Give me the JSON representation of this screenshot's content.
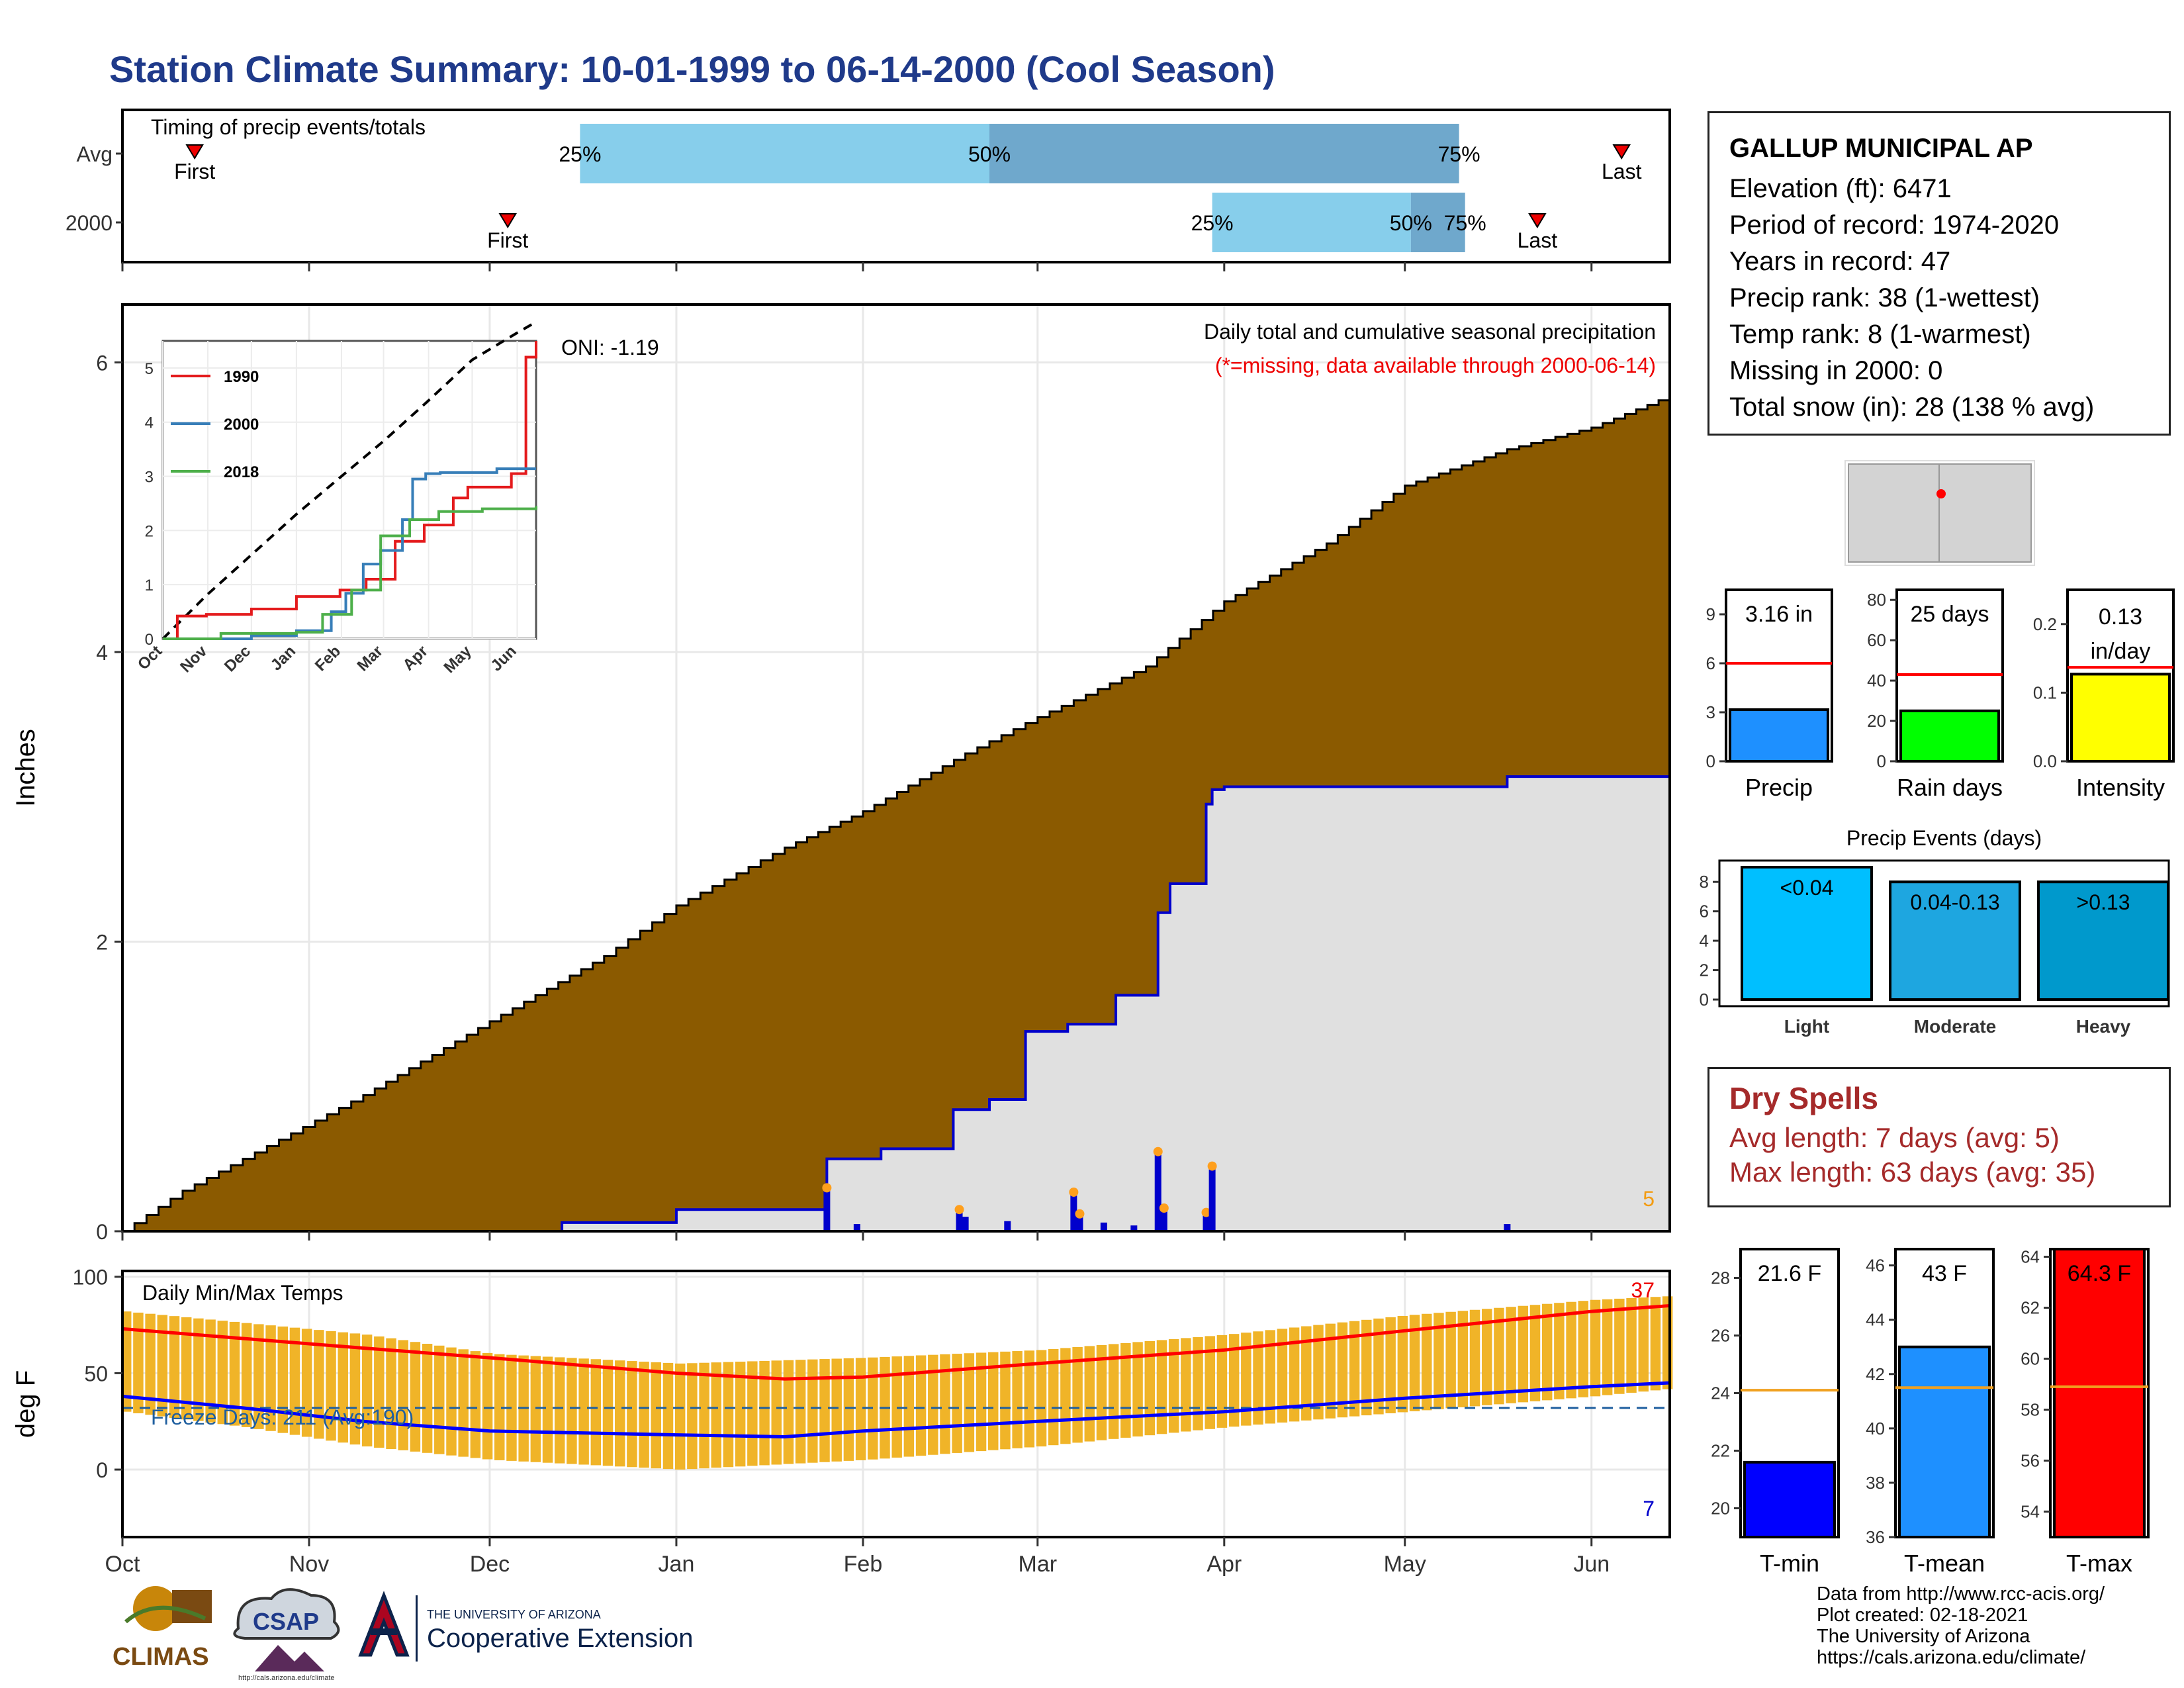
{
  "title": "Station Climate Summary: 10-01-1999 to 06-14-2000 (Cool Season)",
  "station": {
    "name": "GALLUP MUNICIPAL AP",
    "lines": [
      "Elevation (ft): 6471",
      "Period of record: 1974-2020",
      "Years in record: 47",
      "Precip rank: 38 (1-wettest)",
      "Temp rank: 8 (1-warmest)",
      "Missing in 2000: 0",
      "Total snow (in): 28 (138 % avg)"
    ]
  },
  "dry_spells": {
    "heading": "Dry Spells",
    "avg_line": "Avg length: 7 days (avg: 5)",
    "max_line": "Max length: 63 days (avg: 35)"
  },
  "footer": {
    "lines": [
      "Data from http://www.rcc-acis.org/",
      "Plot created: 02-18-2021",
      "The University of Arizona",
      "https://cals.arizona.edu/climate/"
    ]
  },
  "logos": {
    "climas": "CLIMAS",
    "csap": "CSAP",
    "ua_small": "THE UNIVERSITY OF ARIZONA",
    "ua_big": "Cooperative Extension",
    "csap_url": "http://cals.arizona.edu/climate"
  },
  "colors": {
    "title": "#1f3a8a",
    "cumulative_avg": "#8b5a00",
    "cumulative_2000": "#e0e0e0",
    "daily_bar": "#0000cc",
    "temp_bar": "#f0b428",
    "tmax_line": "#ff0000",
    "tmin_line": "#0000ff",
    "light_bar": "#00bfff",
    "moderate_bar": "#1ea6e0",
    "heavy_bar": "#0099cc"
  },
  "chart_data": [
    {
      "id": "timing",
      "type": "bar",
      "title": "Timing of precip events/totals",
      "month_axis": [
        "Oct",
        "Nov",
        "Dec",
        "Jan",
        "Feb",
        "Mar",
        "Apr",
        "May",
        "Jun"
      ],
      "categories": [
        "Avg",
        "2000"
      ],
      "rows": [
        {
          "label": "Avg",
          "first_day": 12,
          "p25_day": 76,
          "p50_day": 144,
          "p75_day": 222,
          "last_day": 249
        },
        {
          "label": "2000",
          "first_day": 64,
          "p25_day": 181,
          "p50_day": 214,
          "p75_day": 223,
          "last_day": 235
        }
      ],
      "labels": {
        "first": "First",
        "last": "Last",
        "p25": "25%",
        "p50": "50%",
        "p75": "75%"
      }
    },
    {
      "id": "precip",
      "type": "area",
      "title": "Daily total and cumulative seasonal precipitation",
      "subtitle": "(*=missing, data available through 2000-06-14)",
      "oni": "ONI: -1.19",
      "ylabel": "Inches",
      "ylim": [
        0,
        6.4
      ],
      "yticks": [
        0,
        2,
        4,
        6
      ],
      "x_month_days": [
        0,
        31,
        61,
        92,
        123,
        152,
        183,
        213,
        244
      ],
      "x_total_days": 257,
      "corner_label": "5",
      "avg_cumulative": {
        "x": [
          0,
          10,
          20,
          40,
          61,
          80,
          92,
          110,
          123,
          140,
          152,
          170,
          183,
          200,
          213,
          230,
          244,
          257
        ],
        "y": [
          0,
          0.28,
          0.5,
          0.94,
          1.45,
          1.9,
          2.25,
          2.65,
          2.9,
          3.3,
          3.55,
          3.9,
          4.35,
          4.75,
          5.15,
          5.4,
          5.55,
          5.77
        ]
      },
      "cumulative_2000": {
        "x": [
          0,
          61,
          73,
          92,
          116,
          117,
          126,
          138,
          144,
          150,
          157,
          165,
          172,
          174,
          180,
          181,
          183,
          191,
          230,
          257
        ],
        "y": [
          0,
          0,
          0.06,
          0.15,
          0.15,
          0.5,
          0.57,
          0.84,
          0.91,
          1.38,
          1.43,
          1.63,
          2.2,
          2.4,
          2.95,
          3.05,
          3.07,
          3.07,
          3.14,
          3.14
        ]
      },
      "daily_2000": {
        "x": [
          117,
          122,
          139,
          140,
          147,
          158,
          159,
          163,
          168,
          172,
          173,
          180,
          181,
          230
        ],
        "y": [
          0.3,
          0.05,
          0.15,
          0.1,
          0.07,
          0.27,
          0.12,
          0.06,
          0.04,
          0.55,
          0.16,
          0.13,
          0.45,
          0.05
        ]
      },
      "inset": {
        "ylim": [
          0,
          5.5
        ],
        "yticks": [
          0,
          1,
          2,
          3,
          4,
          5
        ],
        "xticks": [
          "Oct",
          "Nov",
          "Dec",
          "Jan",
          "Feb",
          "Mar",
          "Apr",
          "May",
          "Jun"
        ],
        "series": [
          {
            "name": "1990",
            "color": "#e41a1c",
            "x": [
              0,
              10,
              30,
              61,
              92,
              122,
              140,
              160,
              180,
              200,
              210,
              240,
              250,
              257
            ],
            "y": [
              0,
              0.42,
              0.45,
              0.55,
              0.78,
              0.9,
              1.1,
              1.8,
              2.1,
              2.6,
              2.8,
              3.05,
              5.2,
              5.5
            ]
          },
          {
            "name": "2000",
            "color": "#377eb8",
            "x": [
              0,
              61,
              92,
              116,
              126,
              138,
              150,
              165,
              172,
              181,
              191,
              230,
              257
            ],
            "y": [
              0,
              0.06,
              0.15,
              0.5,
              0.84,
              1.38,
              1.63,
              2.2,
              2.95,
              3.05,
              3.07,
              3.14,
              3.14
            ]
          },
          {
            "name": "2018",
            "color": "#4daf4a",
            "x": [
              0,
              40,
              92,
              110,
              130,
              150,
              170,
              190,
              220,
              257
            ],
            "y": [
              0,
              0.1,
              0.12,
              0.45,
              0.9,
              1.9,
              2.2,
              2.35,
              2.4,
              2.45
            ]
          }
        ],
        "avg_x": [
          0,
          30,
          61,
          92,
          123,
          152,
          183,
          213,
          244,
          257
        ],
        "avg_y": [
          0,
          0.8,
          1.55,
          2.3,
          3.0,
          3.65,
          4.4,
          5.15,
          5.65,
          5.85
        ]
      }
    },
    {
      "id": "temps",
      "type": "bar",
      "title": "Daily Min/Max Temps",
      "ylabel": "deg F",
      "ylim": [
        -35,
        103
      ],
      "yticks": [
        0,
        50,
        100
      ],
      "xticks": [
        "Oct",
        "Nov",
        "Dec",
        "Jan",
        "Feb",
        "Mar",
        "Apr",
        "May",
        "Jun"
      ],
      "x_month_days": [
        0,
        31,
        61,
        92,
        123,
        152,
        183,
        213,
        244
      ],
      "freeze_line": 32,
      "freeze_label": "Freeze Days: 211 (Avg:190)",
      "record_high_count": "37",
      "record_low_count": "7",
      "avg_max": {
        "x": [
          0,
          20,
          40,
          61,
          92,
          110,
          123,
          152,
          183,
          213,
          244,
          257
        ],
        "y": [
          73,
          68,
          63,
          58,
          50,
          47,
          48,
          55,
          62,
          72,
          82,
          85
        ]
      },
      "avg_min": {
        "x": [
          0,
          20,
          40,
          61,
          92,
          110,
          123,
          152,
          183,
          213,
          244,
          257
        ],
        "y": [
          38,
          32,
          25,
          20,
          18,
          17,
          20,
          25,
          30,
          37,
          43,
          45
        ]
      },
      "max_daily": {
        "x": [
          0,
          20,
          40,
          61,
          92,
          123,
          152,
          183,
          213,
          244,
          257
        ],
        "y": [
          82,
          76,
          70,
          60,
          55,
          58,
          62,
          70,
          80,
          88,
          90
        ]
      },
      "min_daily": {
        "x": [
          0,
          20,
          40,
          61,
          92,
          123,
          152,
          183,
          213,
          244,
          257
        ],
        "y": [
          30,
          22,
          12,
          5,
          0,
          5,
          12,
          22,
          30,
          38,
          42
        ]
      }
    },
    {
      "id": "summary_bars",
      "type": "bar",
      "panels": [
        {
          "name": "Precip",
          "label": "3.16 in",
          "value": 3.16,
          "avg": 6.0,
          "ylim": [
            0,
            10.5
          ],
          "yticks": [
            0,
            3,
            6,
            9
          ],
          "color": "#1e90ff"
        },
        {
          "name": "Rain days",
          "label": "25 days",
          "value": 25,
          "avg": 43,
          "ylim": [
            0,
            85
          ],
          "yticks": [
            0,
            20,
            40,
            60,
            80
          ],
          "color": "#00ff00"
        },
        {
          "name": "Intensity",
          "label_lines": [
            "0.13",
            "in/day"
          ],
          "value": 0.127,
          "avg": 0.137,
          "ylim": [
            0,
            0.25
          ],
          "yticks": [
            0.0,
            0.1,
            0.2
          ],
          "ytick_labels": [
            "0.0",
            "0.1",
            "0.2"
          ],
          "color": "#ffff00"
        }
      ]
    },
    {
      "id": "events",
      "type": "bar",
      "title": "Precip Events (days)",
      "categories": [
        "Light",
        "Moderate",
        "Heavy"
      ],
      "bar_labels": [
        "<0.04",
        "0.04-0.13",
        ">0.13"
      ],
      "values": [
        9,
        8,
        8
      ],
      "ylim": [
        0,
        9
      ],
      "yticks": [
        0,
        2,
        4,
        6,
        8
      ]
    },
    {
      "id": "temp_bars",
      "type": "bar",
      "panels": [
        {
          "name": "T-min",
          "label": "21.6 F",
          "value": 21.6,
          "avg": 24.1,
          "ylim": [
            19,
            29
          ],
          "yticks": [
            20,
            22,
            24,
            26,
            28
          ],
          "color": "#0000ff"
        },
        {
          "name": "T-mean",
          "label": "43 F",
          "value": 43.0,
          "avg": 41.5,
          "ylim": [
            36,
            46.6
          ],
          "yticks": [
            36,
            38,
            40,
            42,
            44,
            46
          ],
          "color": "#1e90ff"
        },
        {
          "name": "T-max",
          "label": "64.3 F",
          "value": 64.3,
          "avg": 58.9,
          "ylim": [
            53,
            64.3
          ],
          "yticks": [
            54,
            56,
            58,
            60,
            62,
            64
          ],
          "color": "#ff0000"
        }
      ]
    }
  ]
}
